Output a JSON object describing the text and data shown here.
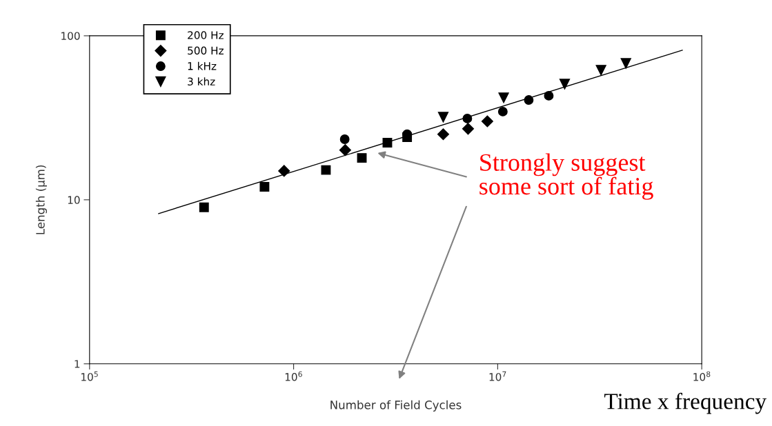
{
  "chart_data": {
    "type": "scatter",
    "xlabel": "Number of Field Cycles",
    "ylabel": "Length (µm)",
    "log": "xy",
    "xlim": [
      100000,
      100000000
    ],
    "ylim": [
      1,
      100
    ],
    "xticks": [
      {
        "value": 100000,
        "label": "10$^{5}$"
      },
      {
        "value": 1000000,
        "label": "10$^{6}$"
      },
      {
        "value": 10000000,
        "label": "10$^{7}$"
      },
      {
        "value": 100000000,
        "label": "10$^{8}$"
      }
    ],
    "yticks": [
      1,
      10,
      100
    ],
    "grid": false,
    "legend": "top left",
    "series": [
      {
        "name": "200 Hz",
        "color": "#000000",
        "marker": "square",
        "x": [
          364000,
          720000,
          1440000,
          2160000,
          2880000,
          3600000
        ],
        "values": [
          9.0,
          12.0,
          15.2,
          18.0,
          22.3,
          24.1
        ]
      },
      {
        "name": "500 Hz",
        "color": "#000000",
        "marker": "diamond",
        "x": [
          898000,
          1790000,
          5410000,
          7160000,
          8900000
        ],
        "values": [
          15.0,
          20.1,
          25.1,
          27.1,
          30.1
        ]
      },
      {
        "name": "1 kHz",
        "color": "#000000",
        "marker": "circle",
        "x": [
          1780000,
          3600000,
          7100000,
          10600000,
          14200000,
          17800000
        ],
        "values": [
          23.4,
          25.1,
          31.3,
          34.5,
          40.6,
          43.1
        ]
      },
      {
        "name": "3 khz",
        "color": "#000000",
        "marker": "triangle",
        "x": [
          5410000,
          10700000,
          21300000,
          32100000,
          42500000
        ],
        "values": [
          31.9,
          41.9,
          50.8,
          61.7,
          67.9
        ]
      },
      {
        "type": "line",
        "color": "#000000",
        "marker": "none",
        "x": [
          218000,
          80300000
        ],
        "values": [
          8.24,
          81.7
        ]
      }
    ],
    "annotations": [
      "Strongly suggest\nsome sort of fatig",
      "Time x frequency"
    ]
  }
}
